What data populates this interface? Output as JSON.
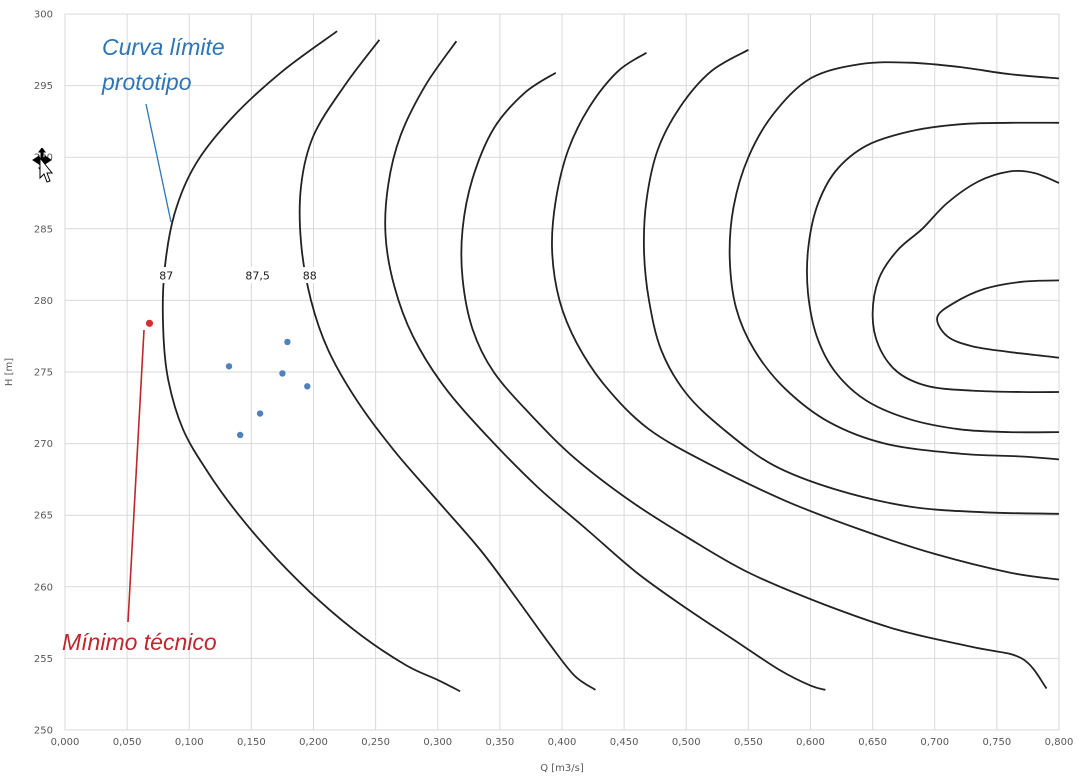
{
  "chart_data": {
    "type": "line",
    "xlabel": "Q [m3/s]",
    "ylabel": "H [m]",
    "xlim": [
      0,
      0.8
    ],
    "ylim": [
      250,
      300
    ],
    "x_ticks": [
      "0,000",
      "0,050",
      "0,100",
      "0,150",
      "0,200",
      "0,250",
      "0,300",
      "0,350",
      "0,400",
      "0,450",
      "0,500",
      "0,550",
      "0,600",
      "0,650",
      "0,700",
      "0,750",
      "0,800"
    ],
    "y_ticks": [
      "250",
      "255",
      "260",
      "265",
      "270",
      "275",
      "280",
      "285",
      "290",
      "295",
      "300"
    ],
    "grid": true,
    "contour_labels": [
      {
        "text": "87",
        "x": 0.0815,
        "y": 281.7
      },
      {
        "text": "87,5",
        "x": 0.155,
        "y": 281.7
      },
      {
        "text": "88",
        "x": 0.197,
        "y": 281.7
      }
    ],
    "series": [
      {
        "points": [
          [
            0.219,
            298.8
          ],
          [
            0.175,
            296
          ],
          [
            0.135,
            292.8
          ],
          [
            0.105,
            289.5
          ],
          [
            0.088,
            286
          ],
          [
            0.08,
            282
          ],
          [
            0.079,
            278
          ],
          [
            0.083,
            274.5
          ],
          [
            0.095,
            271
          ],
          [
            0.115,
            268
          ],
          [
            0.14,
            265
          ],
          [
            0.17,
            262
          ],
          [
            0.205,
            259
          ],
          [
            0.24,
            256.5
          ],
          [
            0.275,
            254.5
          ],
          [
            0.3,
            253.5
          ],
          [
            0.318,
            252.7
          ]
        ]
      },
      {
        "points": [
          [
            0.253,
            298.2
          ],
          [
            0.225,
            295
          ],
          [
            0.2,
            291.5
          ],
          [
            0.19,
            288
          ],
          [
            0.19,
            284
          ],
          [
            0.198,
            280
          ],
          [
            0.212,
            276.5
          ],
          [
            0.235,
            273
          ],
          [
            0.265,
            269.5
          ],
          [
            0.3,
            266
          ],
          [
            0.335,
            262.5
          ],
          [
            0.365,
            259
          ],
          [
            0.39,
            256
          ],
          [
            0.41,
            253.8
          ],
          [
            0.427,
            252.8
          ]
        ]
      },
      {
        "points": [
          [
            0.315,
            298.1
          ],
          [
            0.29,
            295
          ],
          [
            0.27,
            291.5
          ],
          [
            0.26,
            288
          ],
          [
            0.258,
            284.5
          ],
          [
            0.265,
            281
          ],
          [
            0.28,
            277.5
          ],
          [
            0.305,
            274
          ],
          [
            0.34,
            270.5
          ],
          [
            0.38,
            267
          ],
          [
            0.42,
            264
          ],
          [
            0.46,
            261
          ],
          [
            0.5,
            258.5
          ],
          [
            0.54,
            256.2
          ],
          [
            0.575,
            254.2
          ],
          [
            0.6,
            253.1
          ],
          [
            0.612,
            252.8
          ]
        ]
      },
      {
        "points": [
          [
            0.395,
            295.9
          ],
          [
            0.37,
            294.5
          ],
          [
            0.345,
            292
          ],
          [
            0.328,
            288.5
          ],
          [
            0.32,
            285
          ],
          [
            0.32,
            281.5
          ],
          [
            0.328,
            278
          ],
          [
            0.345,
            275
          ],
          [
            0.375,
            272
          ],
          [
            0.41,
            269
          ],
          [
            0.455,
            266
          ],
          [
            0.5,
            263.5
          ],
          [
            0.55,
            261
          ],
          [
            0.61,
            258.8
          ],
          [
            0.67,
            257
          ],
          [
            0.73,
            255.8
          ],
          [
            0.77,
            255
          ],
          [
            0.79,
            252.9
          ]
        ]
      },
      {
        "points": [
          [
            0.468,
            297.3
          ],
          [
            0.445,
            296
          ],
          [
            0.422,
            293.5
          ],
          [
            0.405,
            290.5
          ],
          [
            0.395,
            287
          ],
          [
            0.392,
            283.5
          ],
          [
            0.398,
            280
          ],
          [
            0.412,
            277
          ],
          [
            0.435,
            274
          ],
          [
            0.47,
            271
          ],
          [
            0.52,
            268.5
          ],
          [
            0.58,
            266
          ],
          [
            0.64,
            264
          ],
          [
            0.7,
            262.3
          ],
          [
            0.76,
            261
          ],
          [
            0.8,
            260.5
          ]
        ]
      },
      {
        "points": [
          [
            0.55,
            297.5
          ],
          [
            0.52,
            296
          ],
          [
            0.495,
            293.5
          ],
          [
            0.477,
            290.5
          ],
          [
            0.468,
            287
          ],
          [
            0.466,
            283.5
          ],
          [
            0.47,
            280
          ],
          [
            0.48,
            276.5
          ],
          [
            0.5,
            273.5
          ],
          [
            0.53,
            271
          ],
          [
            0.57,
            268.5
          ],
          [
            0.62,
            266.8
          ],
          [
            0.68,
            265.6
          ],
          [
            0.74,
            265.2
          ],
          [
            0.8,
            265.1
          ]
        ]
      },
      {
        "points": [
          [
            0.8,
            295.5
          ],
          [
            0.76,
            295.8
          ],
          [
            0.72,
            296.3
          ],
          [
            0.68,
            296.6
          ],
          [
            0.64,
            296.5
          ],
          [
            0.6,
            295.5
          ],
          [
            0.57,
            293
          ],
          [
            0.55,
            290
          ],
          [
            0.538,
            286.5
          ],
          [
            0.535,
            283
          ],
          [
            0.54,
            279.5
          ],
          [
            0.555,
            276.5
          ],
          [
            0.58,
            273.8
          ],
          [
            0.615,
            271.5
          ],
          [
            0.66,
            270
          ],
          [
            0.72,
            269.3
          ],
          [
            0.77,
            269.1
          ],
          [
            0.8,
            268.9
          ]
        ]
      },
      {
        "points": [
          [
            0.8,
            292.4
          ],
          [
            0.76,
            292.4
          ],
          [
            0.72,
            292.3
          ],
          [
            0.68,
            291.8
          ],
          [
            0.645,
            290.8
          ],
          [
            0.62,
            289
          ],
          [
            0.605,
            286.5
          ],
          [
            0.598,
            283.5
          ],
          [
            0.598,
            280.5
          ],
          [
            0.605,
            277.5
          ],
          [
            0.62,
            275
          ],
          [
            0.645,
            273
          ],
          [
            0.68,
            271.7
          ],
          [
            0.72,
            271
          ],
          [
            0.76,
            270.8
          ],
          [
            0.8,
            270.8
          ]
        ]
      },
      {
        "points": [
          [
            0.8,
            288.2
          ],
          [
            0.78,
            288.9
          ],
          [
            0.76,
            289
          ],
          [
            0.735,
            288.3
          ],
          [
            0.71,
            286.8
          ],
          [
            0.69,
            285
          ],
          [
            0.67,
            283.5
          ],
          [
            0.655,
            281.5
          ],
          [
            0.65,
            279
          ],
          [
            0.655,
            276.8
          ],
          [
            0.67,
            275
          ],
          [
            0.695,
            274
          ],
          [
            0.73,
            273.7
          ],
          [
            0.77,
            273.6
          ],
          [
            0.8,
            273.6
          ]
        ]
      },
      {
        "points": [
          [
            0.8,
            281.4
          ],
          [
            0.77,
            281.3
          ],
          [
            0.74,
            280.8
          ],
          [
            0.715,
            279.8
          ],
          [
            0.702,
            278.8
          ],
          [
            0.71,
            277.5
          ],
          [
            0.73,
            276.8
          ],
          [
            0.76,
            276.4
          ],
          [
            0.8,
            276
          ]
        ]
      }
    ],
    "blue_points": [
      [
        0.132,
        275.4
      ],
      [
        0.141,
        270.6
      ],
      [
        0.157,
        272.1
      ],
      [
        0.175,
        274.9
      ],
      [
        0.179,
        277.1
      ],
      [
        0.195,
        274.0
      ]
    ],
    "red_point": [
      0.068,
      278.4
    ],
    "annotations": {
      "curva": {
        "text_line1": "Curva límite",
        "text_line2": "prototipo",
        "color": "#2e75b6"
      },
      "minimo": {
        "text": "Mínimo técnico",
        "color": "#c0262c"
      }
    },
    "colors": {
      "curve": "#222222",
      "grid": "#d9d9d9",
      "blue_point": "#4f81bd",
      "red_point": "#d62f2f"
    }
  },
  "icons": {
    "cursor": "move-cursor-icon"
  }
}
